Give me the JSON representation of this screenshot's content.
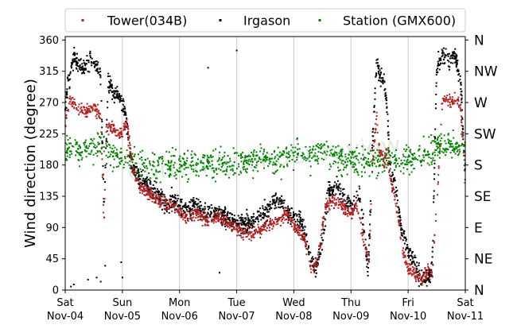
{
  "chart_data": {
    "type": "scatter",
    "ylabel": "Wind direction (degree)",
    "xlabel": "",
    "ylim": [
      0,
      365
    ],
    "yticks": [
      0,
      45,
      90,
      135,
      180,
      225,
      270,
      315,
      360
    ],
    "xlim": [
      0,
      7
    ],
    "xticks": [
      {
        "x": 0,
        "day": "Sat",
        "date": "Nov-04"
      },
      {
        "x": 1,
        "day": "Sun",
        "date": "Nov-05"
      },
      {
        "x": 2,
        "day": "Mon",
        "date": "Nov-06"
      },
      {
        "x": 3,
        "day": "Tue",
        "date": "Nov-07"
      },
      {
        "x": 4,
        "day": "Wed",
        "date": "Nov-08"
      },
      {
        "x": 5,
        "day": "Thu",
        "date": "Nov-09"
      },
      {
        "x": 6,
        "day": "Fri",
        "date": "Nov-10"
      },
      {
        "x": 7,
        "day": "Sat",
        "date": "Nov-11"
      }
    ],
    "right_axis_labels": [
      "N",
      "NE",
      "E",
      "SE",
      "S",
      "SW",
      "W",
      "NW",
      "N"
    ],
    "grid": "vertical",
    "legend_position": "top",
    "watermark": "Currently under review",
    "series": [
      {
        "name": "Tower(034B)",
        "color": "#b22222",
        "keypoints": [
          [
            0.0,
            240
          ],
          [
            0.08,
            275
          ],
          [
            0.2,
            265
          ],
          [
            0.35,
            255
          ],
          [
            0.5,
            262
          ],
          [
            0.62,
            250
          ],
          [
            0.68,
            95
          ],
          [
            0.72,
            230
          ],
          [
            0.82,
            235
          ],
          [
            0.92,
            225
          ],
          [
            1.0,
            225
          ],
          [
            1.08,
            240
          ],
          [
            1.18,
            175
          ],
          [
            1.3,
            150
          ],
          [
            1.45,
            140
          ],
          [
            1.6,
            130
          ],
          [
            1.75,
            125
          ],
          [
            1.9,
            120
          ],
          [
            2.1,
            105
          ],
          [
            2.3,
            110
          ],
          [
            2.5,
            100
          ],
          [
            2.7,
            105
          ],
          [
            2.9,
            95
          ],
          [
            3.1,
            85
          ],
          [
            3.3,
            80
          ],
          [
            3.5,
            90
          ],
          [
            3.7,
            100
          ],
          [
            3.85,
            110
          ],
          [
            3.95,
            100
          ],
          [
            4.1,
            85
          ],
          [
            4.2,
            70
          ],
          [
            4.3,
            30
          ],
          [
            4.38,
            35
          ],
          [
            4.45,
            60
          ],
          [
            4.55,
            120
          ],
          [
            4.7,
            130
          ],
          [
            4.85,
            120
          ],
          [
            5.0,
            110
          ],
          [
            5.1,
            125
          ],
          [
            5.25,
            60
          ],
          [
            5.32,
            45
          ],
          [
            5.38,
            190
          ],
          [
            5.45,
            250
          ],
          [
            5.5,
            200
          ],
          [
            5.58,
            185
          ],
          [
            5.62,
            200
          ],
          [
            5.72,
            145
          ],
          [
            5.78,
            130
          ],
          [
            5.9,
            60
          ],
          [
            6.0,
            30
          ],
          [
            6.12,
            25
          ],
          [
            6.25,
            15
          ],
          [
            6.35,
            30
          ],
          [
            6.42,
            20
          ],
          [
            6.52,
            150
          ],
          [
            6.6,
            275
          ],
          [
            6.72,
            270
          ],
          [
            6.82,
            275
          ],
          [
            6.92,
            265
          ],
          [
            7.0,
            155
          ]
        ]
      },
      {
        "name": "Irgason",
        "color": "#000000",
        "keypoints": [
          [
            0.0,
            260
          ],
          [
            0.05,
            300
          ],
          [
            0.15,
            335
          ],
          [
            0.3,
            320
          ],
          [
            0.45,
            330
          ],
          [
            0.55,
            325
          ],
          [
            0.62,
            310
          ],
          [
            0.68,
            120
          ],
          [
            0.75,
            300
          ],
          [
            0.85,
            285
          ],
          [
            0.95,
            280
          ],
          [
            1.05,
            255
          ],
          [
            1.15,
            185
          ],
          [
            1.3,
            160
          ],
          [
            1.45,
            150
          ],
          [
            1.6,
            140
          ],
          [
            1.75,
            125
          ],
          [
            1.9,
            130
          ],
          [
            2.1,
            115
          ],
          [
            2.3,
            120
          ],
          [
            2.5,
            110
          ],
          [
            2.7,
            110
          ],
          [
            2.9,
            100
          ],
          [
            3.1,
            95
          ],
          [
            3.3,
            100
          ],
          [
            3.5,
            110
          ],
          [
            3.7,
            130
          ],
          [
            3.85,
            120
          ],
          [
            3.95,
            105
          ],
          [
            4.1,
            100
          ],
          [
            4.2,
            80
          ],
          [
            4.3,
            40
          ],
          [
            4.4,
            35
          ],
          [
            4.5,
            70
          ],
          [
            4.6,
            140
          ],
          [
            4.75,
            150
          ],
          [
            4.9,
            130
          ],
          [
            5.05,
            120
          ],
          [
            5.15,
            140
          ],
          [
            5.25,
            70
          ],
          [
            5.3,
            25
          ],
          [
            5.38,
            220
          ],
          [
            5.45,
            330
          ],
          [
            5.5,
            310
          ],
          [
            5.58,
            300
          ],
          [
            5.62,
            270
          ],
          [
            5.7,
            160
          ],
          [
            5.78,
            150
          ],
          [
            5.88,
            90
          ],
          [
            6.0,
            60
          ],
          [
            6.1,
            40
          ],
          [
            6.22,
            20
          ],
          [
            6.32,
            15
          ],
          [
            6.42,
            30
          ],
          [
            6.5,
            320
          ],
          [
            6.6,
            340
          ],
          [
            6.72,
            330
          ],
          [
            6.82,
            340
          ],
          [
            6.92,
            300
          ],
          [
            7.0,
            160
          ]
        ],
        "outliers": [
          [
            0.1,
            5
          ],
          [
            0.15,
            8
          ],
          [
            0.4,
            15
          ],
          [
            0.55,
            18
          ],
          [
            0.62,
            12
          ],
          [
            0.7,
            35
          ],
          [
            0.98,
            40
          ],
          [
            1.0,
            18
          ],
          [
            2.5,
            320
          ],
          [
            3.0,
            345
          ],
          [
            2.7,
            25
          ]
        ]
      },
      {
        "name": "Station (GMX600)",
        "color": "#008000",
        "keypoints": [
          [
            0.0,
            205
          ],
          [
            0.3,
            200
          ],
          [
            0.6,
            210
          ],
          [
            0.9,
            195
          ],
          [
            1.2,
            185
          ],
          [
            1.5,
            178
          ],
          [
            1.8,
            185
          ],
          [
            2.1,
            182
          ],
          [
            2.4,
            180
          ],
          [
            2.7,
            183
          ],
          [
            3.0,
            182
          ],
          [
            3.3,
            185
          ],
          [
            3.6,
            188
          ],
          [
            3.9,
            192
          ],
          [
            4.2,
            198
          ],
          [
            4.5,
            195
          ],
          [
            4.8,
            188
          ],
          [
            5.1,
            182
          ],
          [
            5.4,
            185
          ],
          [
            5.7,
            190
          ],
          [
            6.0,
            188
          ],
          [
            6.3,
            195
          ],
          [
            6.6,
            210
          ],
          [
            7.0,
            205
          ]
        ]
      }
    ]
  }
}
